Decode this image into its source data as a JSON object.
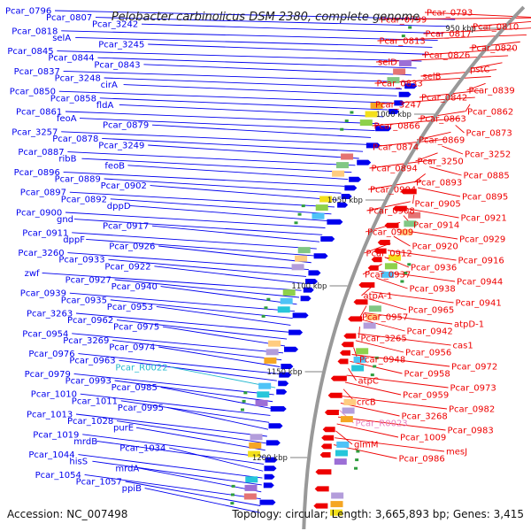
{
  "title": "Pelobacter carbinolicus DSM 2380, complete genome",
  "footer": {
    "accession": "Accession: NC_007498",
    "topology": "Topology: circular; Length: 3,665,893 bp; Genes: 3,415"
  },
  "colors": {
    "forward": "#0000ee",
    "reverse": "#ee0000",
    "rna": "#22b8cf",
    "pink_label": "#e87fc0",
    "backbone": "#999999"
  },
  "ticks": [
    {
      "label": "950 kbp"
    },
    {
      "label": "1000 kbp"
    },
    {
      "label": "1050 kbp"
    },
    {
      "label": "1100 kbp"
    },
    {
      "label": "1150 kbp"
    },
    {
      "label": "1200 kbp"
    }
  ],
  "left_labels": [
    {
      "text": "Pcar_0796",
      "kind": "fwd"
    },
    {
      "text": "Pcar_0807",
      "kind": "fwd"
    },
    {
      "text": "Pcar_3242",
      "kind": "fwd"
    },
    {
      "text": "Pcar_0818",
      "kind": "fwd"
    },
    {
      "text": "selA",
      "kind": "fwd"
    },
    {
      "text": "Pcar_3245",
      "kind": "fwd"
    },
    {
      "text": "Pcar_0845",
      "kind": "fwd"
    },
    {
      "text": "Pcar_0844",
      "kind": "fwd"
    },
    {
      "text": "Pcar_0843",
      "kind": "fwd"
    },
    {
      "text": "Pcar_0837",
      "kind": "fwd"
    },
    {
      "text": "Pcar_3248",
      "kind": "fwd"
    },
    {
      "text": "cirA",
      "kind": "fwd"
    },
    {
      "text": "Pcar_0850",
      "kind": "fwd"
    },
    {
      "text": "Pcar_0858",
      "kind": "fwd"
    },
    {
      "text": "fldA",
      "kind": "fwd"
    },
    {
      "text": "Pcar_0861",
      "kind": "fwd"
    },
    {
      "text": "feoA",
      "kind": "fwd"
    },
    {
      "text": "Pcar_0879",
      "kind": "fwd"
    },
    {
      "text": "Pcar_3257",
      "kind": "fwd"
    },
    {
      "text": "Pcar_0878",
      "kind": "fwd"
    },
    {
      "text": "Pcar_3249",
      "kind": "fwd"
    },
    {
      "text": "Pcar_0887",
      "kind": "fwd"
    },
    {
      "text": "ribB",
      "kind": "fwd"
    },
    {
      "text": "feoB",
      "kind": "fwd"
    },
    {
      "text": "Pcar_0896",
      "kind": "fwd"
    },
    {
      "text": "Pcar_0889",
      "kind": "fwd"
    },
    {
      "text": "Pcar_0902",
      "kind": "fwd"
    },
    {
      "text": "Pcar_0897",
      "kind": "fwd"
    },
    {
      "text": "Pcar_0892",
      "kind": "fwd"
    },
    {
      "text": "dppD",
      "kind": "fwd"
    },
    {
      "text": "Pcar_0900",
      "kind": "fwd"
    },
    {
      "text": "gnd",
      "kind": "fwd"
    },
    {
      "text": "Pcar_0917",
      "kind": "fwd"
    },
    {
      "text": "Pcar_0911",
      "kind": "fwd"
    },
    {
      "text": "dppF",
      "kind": "fwd"
    },
    {
      "text": "Pcar_0926",
      "kind": "fwd"
    },
    {
      "text": "Pcar_3260",
      "kind": "fwd"
    },
    {
      "text": "Pcar_0933",
      "kind": "fwd"
    },
    {
      "text": "Pcar_0922",
      "kind": "fwd"
    },
    {
      "text": "zwf",
      "kind": "fwd"
    },
    {
      "text": "Pcar_0927",
      "kind": "fwd"
    },
    {
      "text": "Pcar_0940",
      "kind": "fwd"
    },
    {
      "text": "Pcar_0939",
      "kind": "fwd"
    },
    {
      "text": "Pcar_0935",
      "kind": "fwd"
    },
    {
      "text": "Pcar_0953",
      "kind": "fwd"
    },
    {
      "text": "Pcar_3263",
      "kind": "fwd"
    },
    {
      "text": "Pcar_0962",
      "kind": "fwd"
    },
    {
      "text": "Pcar_0975",
      "kind": "fwd"
    },
    {
      "text": "Pcar_0954",
      "kind": "fwd"
    },
    {
      "text": "Pcar_3269",
      "kind": "fwd"
    },
    {
      "text": "Pcar_0974",
      "kind": "fwd"
    },
    {
      "text": "Pcar_0976",
      "kind": "fwd"
    },
    {
      "text": "Pcar_0963",
      "kind": "fwd"
    },
    {
      "text": "Pcar_R0022",
      "kind": "rna"
    },
    {
      "text": "Pcar_0979",
      "kind": "fwd"
    },
    {
      "text": "Pcar_0993",
      "kind": "fwd"
    },
    {
      "text": "Pcar_0985",
      "kind": "fwd"
    },
    {
      "text": "Pcar_1010",
      "kind": "fwd"
    },
    {
      "text": "Pcar_1011",
      "kind": "fwd"
    },
    {
      "text": "Pcar_0995",
      "kind": "fwd"
    },
    {
      "text": "Pcar_1013",
      "kind": "fwd"
    },
    {
      "text": "Pcar_1028",
      "kind": "fwd"
    },
    {
      "text": "purE",
      "kind": "fwd"
    },
    {
      "text": "Pcar_1019",
      "kind": "fwd"
    },
    {
      "text": "mrdB",
      "kind": "fwd"
    },
    {
      "text": "Pcar_1034",
      "kind": "fwd"
    },
    {
      "text": "Pcar_1044",
      "kind": "fwd"
    },
    {
      "text": "hisS",
      "kind": "fwd"
    },
    {
      "text": "mrdA",
      "kind": "fwd"
    },
    {
      "text": "Pcar_1054",
      "kind": "fwd"
    },
    {
      "text": "Pcar_1057",
      "kind": "fwd"
    },
    {
      "text": "ppiB",
      "kind": "fwd"
    }
  ],
  "right_labels": [
    {
      "text": "Pcar_0793",
      "kind": "rev"
    },
    {
      "text": "Pcar_0799",
      "kind": "rev"
    },
    {
      "text": "Pcar_0810",
      "kind": "rev"
    },
    {
      "text": "Pcar_0817",
      "kind": "rev"
    },
    {
      "text": "Pcar_0813",
      "kind": "rev"
    },
    {
      "text": "Pcar_0820",
      "kind": "rev"
    },
    {
      "text": "Pcar_0826",
      "kind": "rev"
    },
    {
      "text": "selD",
      "kind": "rev"
    },
    {
      "text": "pstC",
      "kind": "rev"
    },
    {
      "text": "selB",
      "kind": "rev"
    },
    {
      "text": "Pcar_0833",
      "kind": "rev"
    },
    {
      "text": "Pcar_0839",
      "kind": "rev"
    },
    {
      "text": "Pcar_0842",
      "kind": "rev"
    },
    {
      "text": "Pcar_3247",
      "kind": "rev"
    },
    {
      "text": "Pcar_0862",
      "kind": "rev"
    },
    {
      "text": "Pcar_0863",
      "kind": "rev"
    },
    {
      "text": "Pcar_0866",
      "kind": "rev"
    },
    {
      "text": "Pcar_0873",
      "kind": "rev"
    },
    {
      "text": "Pcar_0869",
      "kind": "rev"
    },
    {
      "text": "Pcar_0874",
      "kind": "rev"
    },
    {
      "text": "Pcar_3252",
      "kind": "rev"
    },
    {
      "text": "Pcar_3250",
      "kind": "rev"
    },
    {
      "text": "Pcar_0894",
      "kind": "rev"
    },
    {
      "text": "Pcar_0885",
      "kind": "rev"
    },
    {
      "text": "Pcar_0893",
      "kind": "rev"
    },
    {
      "text": "Pcar_0904",
      "kind": "rev"
    },
    {
      "text": "Pcar_0895",
      "kind": "rev"
    },
    {
      "text": "Pcar_0905",
      "kind": "rev"
    },
    {
      "text": "Pcar_0908",
      "kind": "rev"
    },
    {
      "text": "Pcar_0921",
      "kind": "rev"
    },
    {
      "text": "Pcar_0914",
      "kind": "rev"
    },
    {
      "text": "Pcar_0909",
      "kind": "rev"
    },
    {
      "text": "Pcar_0929",
      "kind": "rev"
    },
    {
      "text": "Pcar_0920",
      "kind": "rev"
    },
    {
      "text": "Pcar_0912",
      "kind": "rev"
    },
    {
      "text": "Pcar_0916",
      "kind": "rev"
    },
    {
      "text": "Pcar_0936",
      "kind": "rev"
    },
    {
      "text": "Pcar_0937",
      "kind": "rev"
    },
    {
      "text": "Pcar_0944",
      "kind": "rev"
    },
    {
      "text": "Pcar_0938",
      "kind": "rev"
    },
    {
      "text": "atpA-1",
      "kind": "rev"
    },
    {
      "text": "Pcar_0941",
      "kind": "rev"
    },
    {
      "text": "Pcar_0965",
      "kind": "rev"
    },
    {
      "text": "Pcar_0957",
      "kind": "rev"
    },
    {
      "text": "atpD-1",
      "kind": "rev"
    },
    {
      "text": "Pcar_0942",
      "kind": "rev"
    },
    {
      "text": "Pcar_3265",
      "kind": "rev"
    },
    {
      "text": "cas1",
      "kind": "rev"
    },
    {
      "text": "Pcar_0956",
      "kind": "rev"
    },
    {
      "text": "Pcar_0948",
      "kind": "rev"
    },
    {
      "text": "Pcar_0972",
      "kind": "rev"
    },
    {
      "text": "Pcar_0958",
      "kind": "rev"
    },
    {
      "text": "atpC",
      "kind": "rev"
    },
    {
      "text": "Pcar_0973",
      "kind": "rev"
    },
    {
      "text": "Pcar_0959",
      "kind": "rev"
    },
    {
      "text": "crcB",
      "kind": "rev"
    },
    {
      "text": "Pcar_0982",
      "kind": "rev"
    },
    {
      "text": "Pcar_3268",
      "kind": "rev"
    },
    {
      "text": "Pcar_R0023",
      "kind": "pink"
    },
    {
      "text": "Pcar_0983",
      "kind": "rev"
    },
    {
      "text": "Pcar_1009",
      "kind": "rev"
    },
    {
      "text": "glmM",
      "kind": "rev"
    },
    {
      "text": "mesJ",
      "kind": "rev"
    },
    {
      "text": "Pcar_0986",
      "kind": "rev"
    }
  ]
}
